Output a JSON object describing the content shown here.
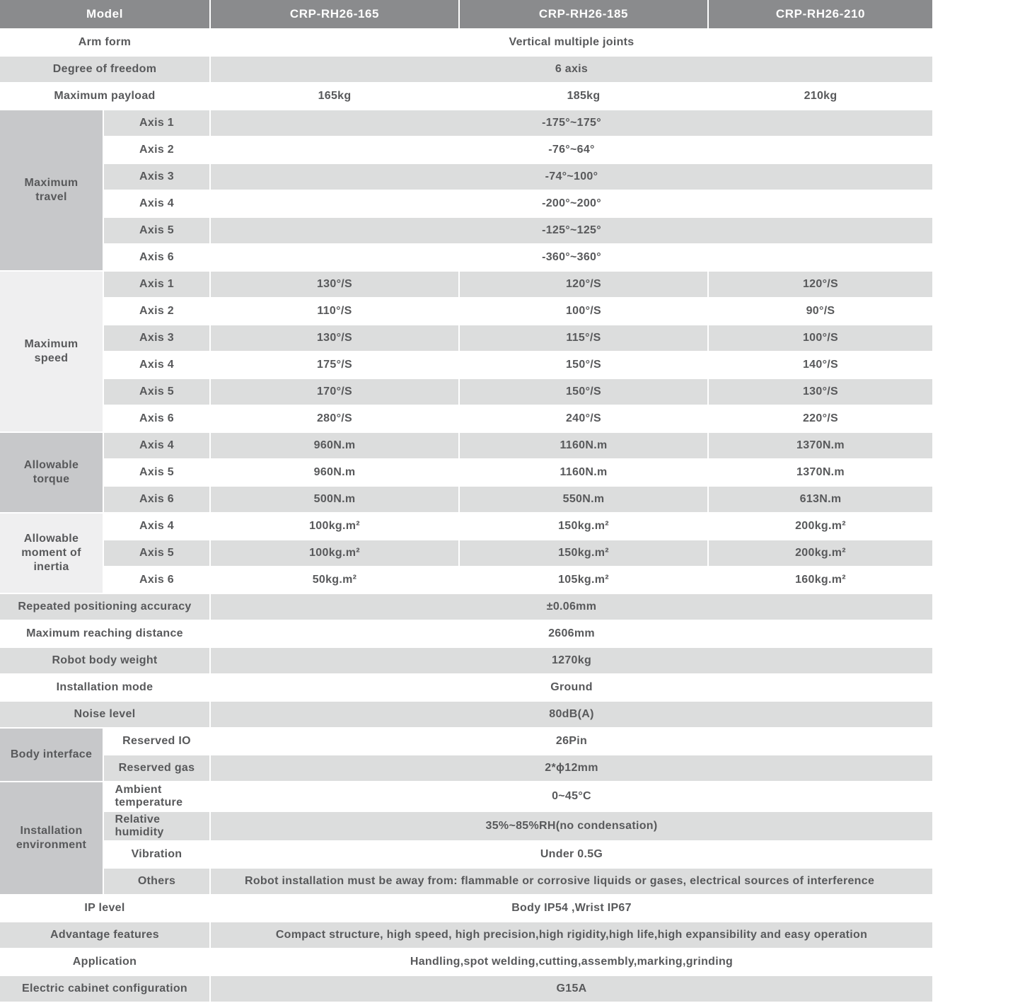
{
  "header": {
    "model_label": "Model",
    "models": [
      "CRP-RH26-165",
      "CRP-RH26-185",
      "CRP-RH26-210"
    ]
  },
  "colors": {
    "header_bg": "#8a8b8d",
    "header_text": "#ffffff",
    "row_gray": "#dcdddd",
    "group_dark": "#c7c8ca",
    "group_light": "#efeff0",
    "text": "#58595b"
  },
  "rows": [
    {
      "label": "Arm form",
      "value": "Vertical multiple joints",
      "shade": "white"
    },
    {
      "label": "Degree of freedom",
      "value": "6 axis",
      "shade": "gray"
    },
    {
      "label": "Maximum payload",
      "values": [
        "165kg",
        "185kg",
        "210kg"
      ],
      "shade": "white"
    },
    {
      "group": {
        "label": "Maximum travel",
        "rows": 6,
        "shade": "dark"
      },
      "sub": "Axis 1",
      "value": "-175°~175°",
      "shade": "gray"
    },
    {
      "sub": "Axis 2",
      "value": "-76°~64°",
      "shade": "white"
    },
    {
      "sub": "Axis 3",
      "value": "-74°~100°",
      "shade": "gray"
    },
    {
      "sub": "Axis 4",
      "value": "-200°~200°",
      "shade": "white"
    },
    {
      "sub": "Axis 5",
      "value": "-125°~125°",
      "shade": "gray"
    },
    {
      "sub": "Axis 6",
      "value": "-360°~360°",
      "shade": "white"
    },
    {
      "group": {
        "label": "Maximum speed",
        "rows": 6,
        "shade": "light"
      },
      "sub": "Axis 1",
      "values": [
        "130°/S",
        "120°/S",
        "120°/S"
      ],
      "shade": "gray"
    },
    {
      "sub": "Axis 2",
      "values": [
        "110°/S",
        "100°/S",
        "90°/S"
      ],
      "shade": "white"
    },
    {
      "sub": "Axis 3",
      "values": [
        "130°/S",
        "115°/S",
        "100°/S"
      ],
      "shade": "gray"
    },
    {
      "sub": "Axis 4",
      "values": [
        "175°/S",
        "150°/S",
        "140°/S"
      ],
      "shade": "white"
    },
    {
      "sub": "Axis 5",
      "values": [
        "170°/S",
        "150°/S",
        "130°/S"
      ],
      "shade": "gray"
    },
    {
      "sub": "Axis 6",
      "values": [
        "280°/S",
        "240°/S",
        "220°/S"
      ],
      "shade": "white"
    },
    {
      "group": {
        "label": "Allowable torque",
        "rows": 3,
        "shade": "dark"
      },
      "sub": "Axis 4",
      "values": [
        "960N.m",
        "1160N.m",
        "1370N.m"
      ],
      "shade": "gray"
    },
    {
      "sub": "Axis 5",
      "values": [
        "960N.m",
        "1160N.m",
        "1370N.m"
      ],
      "shade": "white"
    },
    {
      "sub": "Axis 6",
      "values": [
        "500N.m",
        "550N.m",
        "613N.m"
      ],
      "shade": "gray"
    },
    {
      "group": {
        "label": "Allowable moment of inertia",
        "rows": 3,
        "shade": "light"
      },
      "sub": "Axis 4",
      "values": [
        "100kg.m²",
        "150kg.m²",
        "200kg.m²"
      ],
      "shade": "white"
    },
    {
      "sub": "Axis 5",
      "values": [
        "100kg.m²",
        "150kg.m²",
        "200kg.m²"
      ],
      "shade": "gray"
    },
    {
      "sub": "Axis 6",
      "values": [
        "50kg.m²",
        "105kg.m²",
        "160kg.m²"
      ],
      "shade": "white"
    },
    {
      "label": "Repeated positioning accuracy",
      "value": "±0.06mm",
      "shade": "gray"
    },
    {
      "label": "Maximum reaching distance",
      "value": "2606mm",
      "shade": "white"
    },
    {
      "label": "Robot body weight",
      "value": "1270kg",
      "shade": "gray"
    },
    {
      "label": "Installation mode",
      "value": "Ground",
      "shade": "white"
    },
    {
      "label": "Noise level",
      "value": "80dB(A)",
      "shade": "gray"
    },
    {
      "group": {
        "label": "Body interface",
        "rows": 2,
        "shade": "dark",
        "oneline": true
      },
      "sub": "Reserved IO",
      "value": "26Pin",
      "shade": "white"
    },
    {
      "sub": "Reserved gas",
      "value": "2*ϕ12mm",
      "shade": "gray"
    },
    {
      "group": {
        "label": "Installation environment",
        "rows": 4,
        "shade": "dark"
      },
      "sub": "Ambient temperature",
      "sub_block": true,
      "value": "0~45°C",
      "shade": "white"
    },
    {
      "sub": "Relative humidity",
      "sub_block": true,
      "value": "35%~85%RH(no condensation)",
      "shade": "gray"
    },
    {
      "sub": "Vibration",
      "value": "Under 0.5G",
      "shade": "white"
    },
    {
      "sub": "Others",
      "value": "Robot installation must be away from: flammable or corrosive liquids or gases, electrical sources of interference",
      "value_align": "left",
      "shade": "gray"
    },
    {
      "label": "IP level",
      "value": "Body IP54 ,Wrist IP67",
      "shade": "white"
    },
    {
      "label": "Advantage features",
      "value": "Compact structure, high speed, high precision,high rigidity,high life,high expansibility and easy operation",
      "shade": "gray"
    },
    {
      "label": "Application",
      "value": "Handling,spot welding,cutting,assembly,marking,grinding",
      "shade": "white"
    },
    {
      "label": "Electric cabinet configuration",
      "value": "G15A",
      "shade": "gray"
    }
  ]
}
